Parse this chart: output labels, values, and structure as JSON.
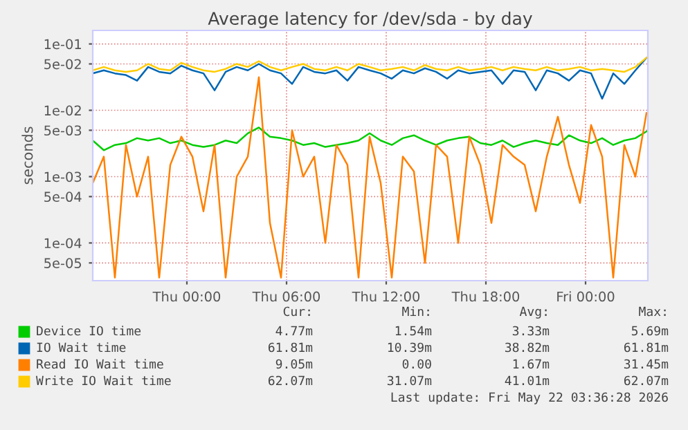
{
  "chart_data": {
    "type": "line",
    "title": "Average latency for /dev/sda - by day",
    "ylabel": "seconds",
    "x": [
      "2026-05-20T18:20",
      "2026-05-20T19:00",
      "2026-05-20T19:40",
      "2026-05-20T20:20",
      "2026-05-20T21:00",
      "2026-05-20T21:40",
      "2026-05-20T22:20",
      "2026-05-20T23:00",
      "2026-05-20T23:40",
      "2026-05-21T00:20",
      "2026-05-21T01:00",
      "2026-05-21T01:40",
      "2026-05-21T02:20",
      "2026-05-21T03:00",
      "2026-05-21T03:40",
      "2026-05-21T04:20",
      "2026-05-21T05:00",
      "2026-05-21T05:40",
      "2026-05-21T06:20",
      "2026-05-21T07:00",
      "2026-05-21T07:40",
      "2026-05-21T08:20",
      "2026-05-21T09:00",
      "2026-05-21T09:40",
      "2026-05-21T10:20",
      "2026-05-21T11:00",
      "2026-05-21T11:40",
      "2026-05-21T12:20",
      "2026-05-21T13:00",
      "2026-05-21T13:40",
      "2026-05-21T14:20",
      "2026-05-21T15:00",
      "2026-05-21T15:40",
      "2026-05-21T16:20",
      "2026-05-21T17:00",
      "2026-05-21T17:40",
      "2026-05-21T18:20",
      "2026-05-21T19:00",
      "2026-05-21T19:40",
      "2026-05-21T20:20",
      "2026-05-21T21:00",
      "2026-05-21T21:40",
      "2026-05-21T22:20",
      "2026-05-21T23:00",
      "2026-05-21T23:40",
      "2026-05-22T00:20",
      "2026-05-22T01:00",
      "2026-05-22T01:40",
      "2026-05-22T02:20",
      "2026-05-22T03:00",
      "2026-05-22T03:40"
    ],
    "series": [
      {
        "name": "Device IO time",
        "color": "#00cc00",
        "values": [
          0.0035,
          0.0025,
          0.003,
          0.0032,
          0.0038,
          0.0035,
          0.0038,
          0.0032,
          0.0035,
          0.003,
          0.0028,
          0.003,
          0.0035,
          0.0032,
          0.0045,
          0.0055,
          0.004,
          0.0038,
          0.0035,
          0.003,
          0.0032,
          0.0028,
          0.003,
          0.0032,
          0.0035,
          0.0045,
          0.0035,
          0.003,
          0.0038,
          0.0042,
          0.0035,
          0.003,
          0.0035,
          0.0038,
          0.004,
          0.0032,
          0.003,
          0.0035,
          0.0028,
          0.0032,
          0.0035,
          0.0032,
          0.003,
          0.0042,
          0.0035,
          0.0032,
          0.0038,
          0.003,
          0.0035,
          0.0038,
          0.0048
        ]
      },
      {
        "name": "IO Wait time",
        "color": "#0066b3",
        "values": [
          0.036,
          0.04,
          0.036,
          0.034,
          0.028,
          0.045,
          0.038,
          0.036,
          0.047,
          0.04,
          0.036,
          0.02,
          0.038,
          0.045,
          0.04,
          0.05,
          0.04,
          0.036,
          0.025,
          0.045,
          0.038,
          0.036,
          0.04,
          0.028,
          0.045,
          0.04,
          0.036,
          0.03,
          0.04,
          0.036,
          0.043,
          0.038,
          0.03,
          0.04,
          0.036,
          0.038,
          0.04,
          0.025,
          0.04,
          0.038,
          0.02,
          0.04,
          0.036,
          0.028,
          0.04,
          0.036,
          0.015,
          0.036,
          0.025,
          0.04,
          0.0618
        ]
      },
      {
        "name": "Read IO Wait time",
        "color": "#ff8000",
        "values": [
          0.0008,
          0.002,
          3e-05,
          0.003,
          0.0005,
          0.002,
          3e-05,
          0.0015,
          0.004,
          0.002,
          0.0003,
          0.003,
          3e-05,
          0.001,
          0.002,
          0.0315,
          0.0002,
          3e-05,
          0.005,
          0.001,
          0.002,
          0.0001,
          0.003,
          0.0015,
          3e-05,
          0.004,
          0.0008,
          3e-05,
          0.002,
          0.0012,
          5e-05,
          0.003,
          0.002,
          0.0001,
          0.004,
          0.0015,
          0.0002,
          0.003,
          0.002,
          0.0015,
          0.0003,
          0.002,
          0.008,
          0.0015,
          0.0004,
          0.006,
          0.002,
          3e-05,
          0.003,
          0.001,
          0.0091
        ]
      },
      {
        "name": "Write IO Wait time",
        "color": "#ffcc00",
        "values": [
          0.04,
          0.045,
          0.04,
          0.038,
          0.04,
          0.05,
          0.042,
          0.04,
          0.052,
          0.045,
          0.04,
          0.038,
          0.042,
          0.05,
          0.045,
          0.055,
          0.045,
          0.04,
          0.045,
          0.05,
          0.042,
          0.04,
          0.045,
          0.04,
          0.05,
          0.045,
          0.04,
          0.042,
          0.045,
          0.04,
          0.048,
          0.042,
          0.04,
          0.045,
          0.04,
          0.042,
          0.045,
          0.04,
          0.045,
          0.042,
          0.04,
          0.045,
          0.04,
          0.042,
          0.045,
          0.04,
          0.042,
          0.04,
          0.038,
          0.045,
          0.0621
        ]
      }
    ],
    "log": true,
    "grid": true,
    "legend": "bottom",
    "ylim": [
      2.7e-05,
      0.16
    ],
    "yticks": [
      {
        "value": 0.1,
        "label": "1e-01"
      },
      {
        "value": 0.05,
        "label": "5e-02"
      },
      {
        "value": 0.01,
        "label": "1e-02"
      },
      {
        "value": 0.005,
        "label": "5e-03"
      },
      {
        "value": 0.001,
        "label": "1e-03"
      },
      {
        "value": 0.0005,
        "label": "5e-04"
      },
      {
        "value": 0.0001,
        "label": "1e-04"
      },
      {
        "value": 5e-05,
        "label": "5e-05"
      }
    ],
    "xlim": [
      "2026-05-20T18:20",
      "2026-05-22T03:45"
    ],
    "xticks": [
      {
        "value": "2026-05-21T00:00",
        "label": "Thu 00:00"
      },
      {
        "value": "2026-05-21T06:00",
        "label": "Thu 06:00"
      },
      {
        "value": "2026-05-21T12:00",
        "label": "Thu 12:00"
      },
      {
        "value": "2026-05-21T18:00",
        "label": "Thu 18:00"
      },
      {
        "value": "2026-05-22T00:00",
        "label": "Fri 00:00"
      }
    ],
    "annotations": [
      "Cur:",
      "Min:",
      "Avg:",
      "Max:",
      "4.77m",
      "1.54m",
      "3.33m",
      "5.69m",
      "61.81m",
      "10.39m",
      "38.82m",
      "61.81m",
      "9.05m",
      "0.00",
      "1.67m",
      "31.45m",
      "62.07m",
      "31.07m",
      "41.01m",
      "62.07m",
      "Last update: Fri May 22 03:36:28 2026"
    ]
  }
}
